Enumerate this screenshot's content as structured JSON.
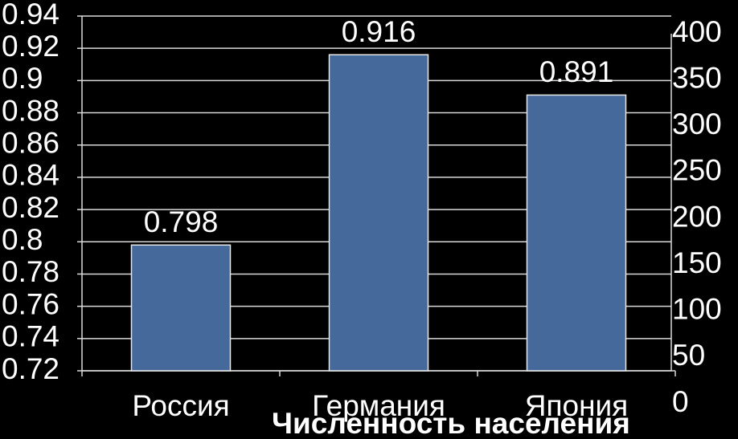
{
  "chart_data": {
    "type": "bar",
    "categories": [
      "Россия",
      "Германия",
      "Япония"
    ],
    "values": [
      0.798,
      0.916,
      0.891
    ],
    "color": "#44699a",
    "ylim": [
      0.72,
      0.94
    ],
    "yticks": [
      0.72,
      0.74,
      0.76,
      0.78,
      0.8,
      0.82,
      0.84,
      0.86,
      0.88,
      0.9,
      0.92,
      0.94
    ],
    "y2lim": [
      0,
      400
    ],
    "y2ticks": [
      0,
      50,
      100,
      150,
      200,
      250,
      300,
      350,
      400
    ],
    "grid": true,
    "annotation": "Численность населения"
  }
}
